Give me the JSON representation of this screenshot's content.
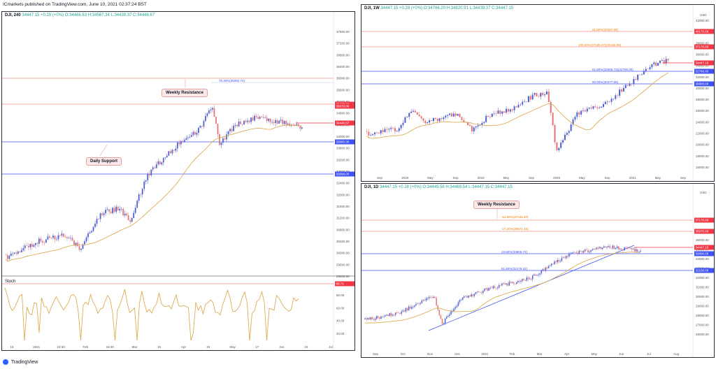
{
  "header": {
    "brand_line": "ICmarkets published on TradingView.com, June 10, 2021 02:37:24 BST"
  },
  "footer": {
    "logo_text": "TradingView"
  },
  "colors": {
    "blue_line": "#3f51f5",
    "red_line": "#f28b82",
    "orange_line": "#f57c00",
    "ma_line": "#d9a441",
    "candle_up": "#4d5fd1",
    "candle_down": "#e57373",
    "current_price": "#f23645"
  },
  "left_panel": {
    "title_symbol": "DJI, 240",
    "title_ohlc": "34447.15 +0.28 (+0%) O:34466.63 H:34567.34 L:34439.37 C:34446.67",
    "callout_resistance": "Weekly Resistance",
    "callout_support": "Daily Support",
    "fib_label": "76.40%(35082.74)",
    "price_axis": [
      "37600.00",
      "37200.00",
      "36800.00",
      "36400.00",
      "36000.00",
      "35600.00",
      "35200.00",
      "34800.00",
      "34400.00",
      "34000.00",
      "33600.00",
      "33200.00",
      "32800.00",
      "32400.00",
      "32000.00",
      "31600.00",
      "31200.00",
      "30800.00",
      "30400.00",
      "30000.00",
      "29600.00",
      "29200.00"
    ],
    "tags": [
      {
        "text": "35170.00",
        "color": "#f23645"
      },
      {
        "text": "35070.00",
        "color": "#f23645"
      },
      {
        "text": "34446.67",
        "color": "#f23645"
      },
      {
        "text": "33800.00",
        "color": "#3f51f5"
      },
      {
        "text": "32696.00",
        "color": "#3f51f5"
      }
    ],
    "time_axis": [
      "15",
      "2021",
      "18:30",
      "Feb",
      "18:30",
      "Mar",
      "15",
      "Apr",
      "19",
      "May",
      "17",
      "Jun",
      "15",
      "Jul"
    ],
    "stoch": {
      "label": "Stoch",
      "axis": [
        "80.00",
        "60.00",
        "40.00",
        "20.00"
      ],
      "tag": "89.72"
    }
  },
  "right_top": {
    "title_symbol": "DJI, 1W",
    "title_ohlc": "34447.15 +0.28 (+0%) O:34766.20 H:34820.91 L:34439.37 C:34447.15",
    "price_axis": [
      "42000.00",
      "40000.00",
      "38000.00",
      "36000.00",
      "34000.00",
      "32000.00",
      "30000.00",
      "28000.00",
      "26000.00",
      "24000.00",
      "22000.00",
      "20000.00",
      "18000.00",
      "16000.00"
    ],
    "top_label": "USD",
    "tags": [
      {
        "text": "40170.00",
        "color": "#f23645"
      },
      {
        "text": "37170.00",
        "color": "#f23645"
      },
      {
        "text": "34447.15",
        "color": "#f23645"
      },
      {
        "text": "32766.00",
        "color": "#3f51f5"
      },
      {
        "text": "30900.00",
        "color": "#3f51f5"
      }
    ],
    "fib_labels": [
      "61.80%(40167.98)",
      "100.00%(37185.47)(35165.99)",
      "61.80%(32565.73)(32766.00)",
      "50.00%(30477.58)"
    ],
    "time_axis": [
      "Sep",
      "2018",
      "May",
      "Sep",
      "2019",
      "May",
      "Sep",
      "2020",
      "May",
      "Sep",
      "2021",
      "May",
      "Sep"
    ]
  },
  "right_bottom": {
    "title_symbol": "DJI, 1D",
    "title_ohlc": "34447.15 +0.28 (+0%) O:34449.58 H:34469.54 L:34447.15 C:34447.15",
    "callout_resistance": "Weekly Resistance",
    "price_axis": [
      "36000.00",
      "35000.00",
      "34000.00",
      "33000.00",
      "32000.00",
      "31000.00",
      "30000.00",
      "29000.00",
      "28000.00",
      "27000.00",
      "26000.00"
    ],
    "top_label": "USD",
    "tags": [
      {
        "text": "37170.00",
        "color": "#f23645"
      },
      {
        "text": "35970.00",
        "color": "#f23645"
      },
      {
        "text": "34447.15",
        "color": "#f23645"
      },
      {
        "text": "33800.00",
        "color": "#3f51f5"
      },
      {
        "text": "32100.00",
        "color": "#3f51f5"
      }
    ],
    "fib_labels": [
      "-61.80%(37446.40)",
      "-27.20%(35971.16)",
      "23.60%(33805.72)",
      "61.80%(32179.32)"
    ],
    "time_axis": [
      "Sep",
      "Oct",
      "Nov",
      "Dec",
      "2021",
      "Feb",
      "Mar",
      "Apr",
      "May",
      "Jun",
      "Jul",
      "Aug"
    ]
  }
}
